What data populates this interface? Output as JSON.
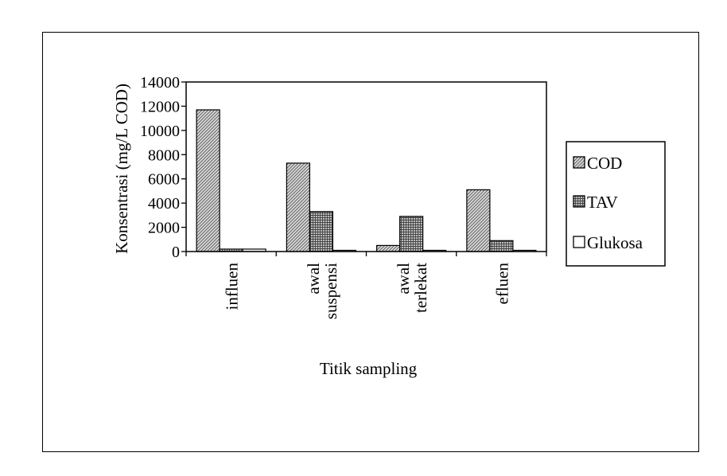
{
  "chart_data": {
    "type": "bar",
    "ylabel": "Konsentrasi (mg/L COD)",
    "xlabel": "Titik sampling",
    "ylim": [
      0,
      14000
    ],
    "yticks": [
      0,
      2000,
      4000,
      6000,
      8000,
      10000,
      12000,
      14000
    ],
    "categories": [
      [
        "influen"
      ],
      [
        "awal",
        "suspensi"
      ],
      [
        "awal",
        "terlekat"
      ],
      [
        "efluen"
      ]
    ],
    "series": [
      {
        "name": "COD",
        "values": [
          11700,
          7300,
          500,
          5100
        ]
      },
      {
        "name": "TAV",
        "values": [
          200,
          3300,
          2900,
          900
        ]
      },
      {
        "name": "Glukosa",
        "values": [
          200,
          100,
          100,
          100
        ]
      }
    ],
    "legend_position": "right",
    "grid": false
  }
}
